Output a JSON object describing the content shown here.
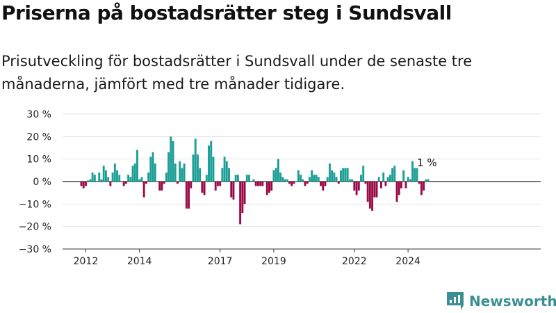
{
  "title": "Priserna på bostadsrätter steg i Sundsvall",
  "subtitle": "Prisutveckling för bostadsrätter i Sundsvall under de senaste tre månaderna, jämfört med tre månader tidigare.",
  "brand": {
    "name": "Newsworthy",
    "icon": "newsworthy-logo-icon",
    "color": "#3a8f92"
  },
  "colors": {
    "highlight": "#1a9e95",
    "positive": "#1a9e95",
    "negative": "#9b0a47",
    "grid": "#e3e3e3",
    "zero": "#222222"
  },
  "chart_data": {
    "type": "bar",
    "title": "Priserna på bostadsrätter steg i Sundsvall",
    "subtitle": "Prisutveckling för bostadsrätter i Sundsvall under de senaste tre månaderna, jämfört med tre månader tidigare.",
    "xlabel": "",
    "ylabel": "",
    "ylim": [
      -30,
      30
    ],
    "yticks": [
      30,
      20,
      10,
      0,
      -10,
      -20,
      -30
    ],
    "ytick_labels": [
      "30 %",
      "20 %",
      "10 %",
      "0 %",
      "−10 %",
      "−20 %",
      "−30 %"
    ],
    "x_tick_labels": [
      "2012",
      "2014",
      "2017",
      "2019",
      "2022",
      "2024"
    ],
    "annotation": "1 %",
    "grid": true,
    "x_start": "2011-11",
    "values": [
      -2,
      -3,
      -2,
      0.5,
      1,
      4,
      3,
      0,
      4,
      1,
      7,
      5,
      2,
      -2,
      4,
      8,
      5,
      3,
      0,
      -2,
      -1,
      3,
      2,
      7,
      8,
      14,
      1,
      2,
      -7,
      -1,
      4,
      11,
      13,
      8,
      0,
      -4,
      -4,
      -1,
      4,
      13,
      20,
      18,
      8,
      -1,
      9,
      6,
      8,
      -12,
      -12,
      -3,
      12,
      19,
      12,
      6,
      -5,
      -6,
      3,
      16,
      18,
      11,
      -4,
      -2,
      -2,
      6,
      11,
      9,
      6,
      -7,
      -8,
      3,
      3,
      -19,
      -14,
      -10,
      3,
      3,
      0,
      1,
      -2,
      -2,
      -2,
      -2,
      0,
      -6,
      -5,
      -4,
      5,
      6,
      10,
      4,
      2,
      1,
      1,
      -1,
      -2,
      -1,
      0,
      5,
      3,
      1,
      -2,
      -1,
      2,
      5,
      3,
      3,
      2,
      -2,
      -4,
      -2,
      2,
      8,
      5,
      4,
      2,
      -1,
      5,
      6,
      6,
      6,
      1,
      1,
      -4,
      -6,
      -4,
      3,
      7,
      -1,
      -9,
      -12,
      -13,
      -7,
      -7,
      2,
      -3,
      4,
      -2,
      2,
      3,
      6,
      7,
      -9,
      -6,
      -3,
      5,
      -3,
      2,
      1,
      9,
      6,
      6,
      -1,
      -6,
      -4,
      1,
      1
    ]
  }
}
